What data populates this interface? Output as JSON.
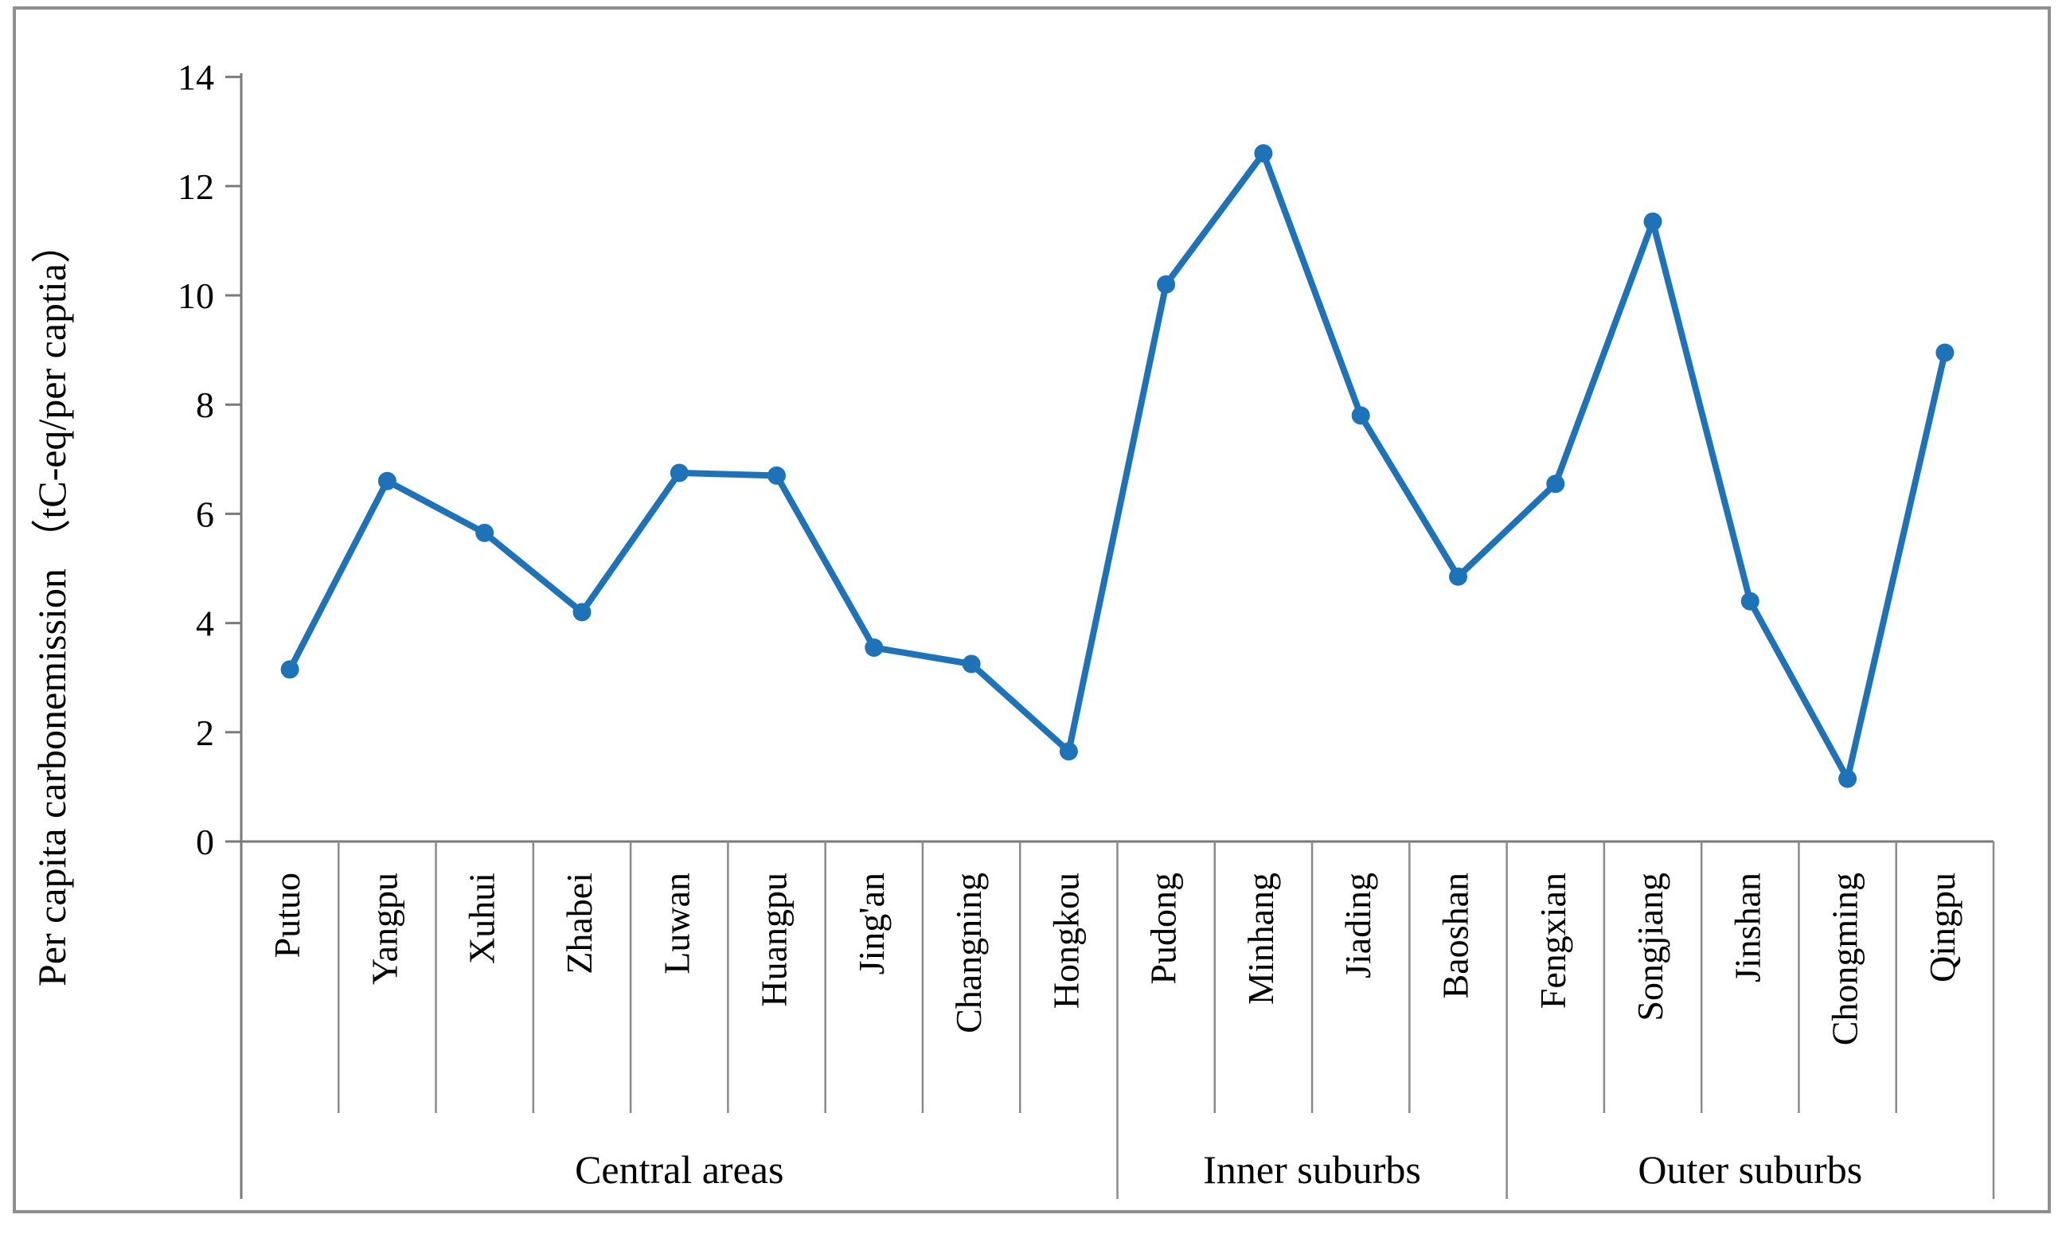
{
  "chart_data": {
    "type": "line",
    "title": "",
    "ylabel": "Per capita carbonemission （tC-eq/per captia）",
    "xlabel": "",
    "categories": [
      "Putuo",
      "Yangpu",
      "Xuhui",
      "Zhabei",
      "Luwan",
      "Huangpu",
      "Jing'an",
      "Changning",
      "Hongkou",
      "Pudong",
      "Minhang",
      "Jiading",
      "Baoshan",
      "Fengxian",
      "Songjiang",
      "Jinshan",
      "Chongming",
      "Qingpu"
    ],
    "series": [
      {
        "name": "Per capita carbon emission",
        "values": [
          3.15,
          6.6,
          5.65,
          4.2,
          6.75,
          6.7,
          3.55,
          3.25,
          1.65,
          10.2,
          12.6,
          7.8,
          4.85,
          6.55,
          11.35,
          4.4,
          1.15,
          8.95
        ]
      }
    ],
    "groups": [
      {
        "label": "Central areas",
        "count": 9
      },
      {
        "label": "Inner suburbs",
        "count": 4
      },
      {
        "label": "Outer suburbs",
        "count": 5
      }
    ],
    "y_ticks": [
      0,
      2,
      4,
      6,
      8,
      10,
      12,
      14
    ],
    "ylim": [
      0,
      14
    ],
    "grid": false,
    "legend_position": "none",
    "marker": "circle",
    "colors": {
      "line": "#1e72b8",
      "marker": "#1e72b8",
      "axis": "#7a7a7a",
      "separator": "#8a8a8a",
      "text": "#000000",
      "frame": "#8f8f8f",
      "background": "#ffffff"
    }
  }
}
